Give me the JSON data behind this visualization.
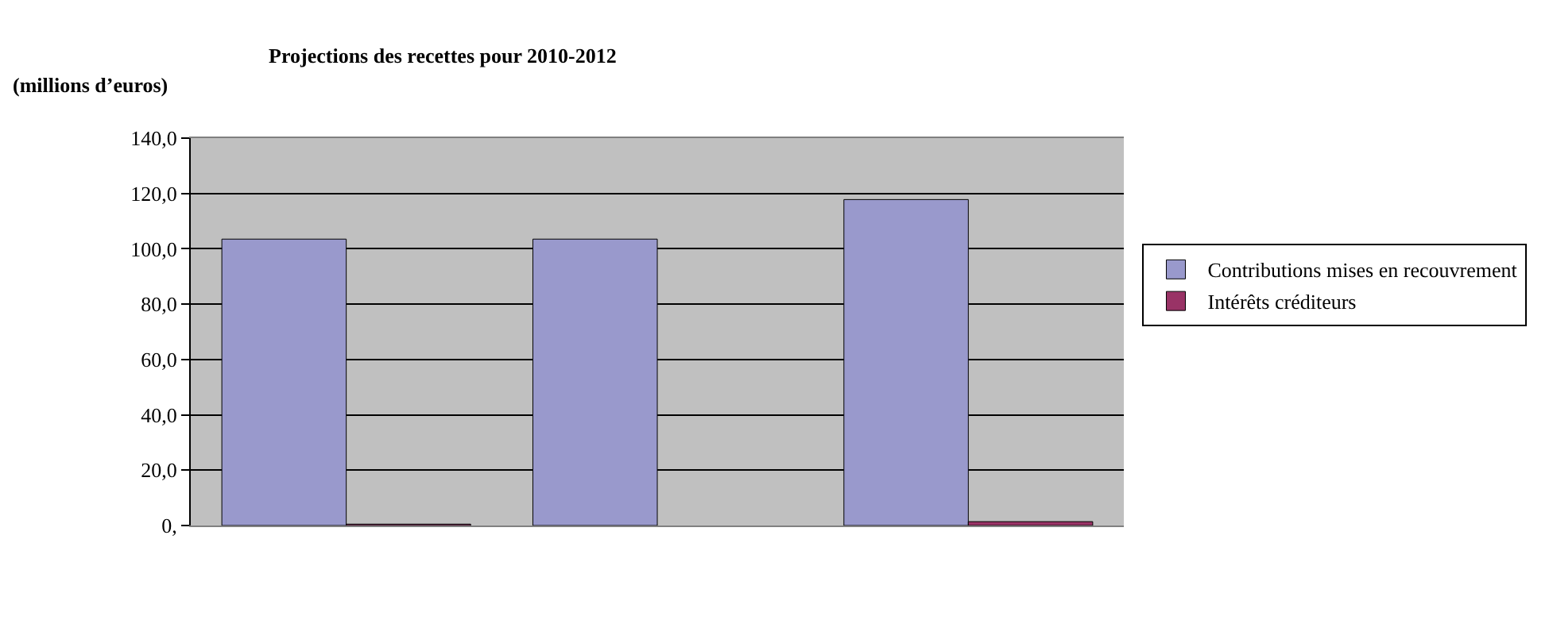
{
  "chart_data": {
    "type": "bar",
    "title": "Projections des recettes pour 2010-2012",
    "ylabel": "(millions d’euros)",
    "categories": [
      null,
      null,
      null
    ],
    "series": [
      {
        "name": "Contributions mises en recouvrement",
        "color": "#9999cc",
        "values": [
          103.5,
          103.5,
          117.8
        ]
      },
      {
        "name": "Intérêts créditeurs",
        "color": "#993366",
        "values": [
          0.5,
          null,
          1.4
        ]
      }
    ],
    "ylim": [
      0,
      140
    ],
    "yticks": [
      {
        "value": 0,
        "label": "0,"
      },
      {
        "value": 20,
        "label": "20,0"
      },
      {
        "value": 40,
        "label": "40,0"
      },
      {
        "value": 60,
        "label": "60,0"
      },
      {
        "value": 80,
        "label": "80,0"
      },
      {
        "value": 100,
        "label": "100,0"
      },
      {
        "value": 120,
        "label": "120,0"
      },
      {
        "value": 140,
        "label": "140,0"
      }
    ],
    "grid": "y",
    "legend": "right"
  }
}
